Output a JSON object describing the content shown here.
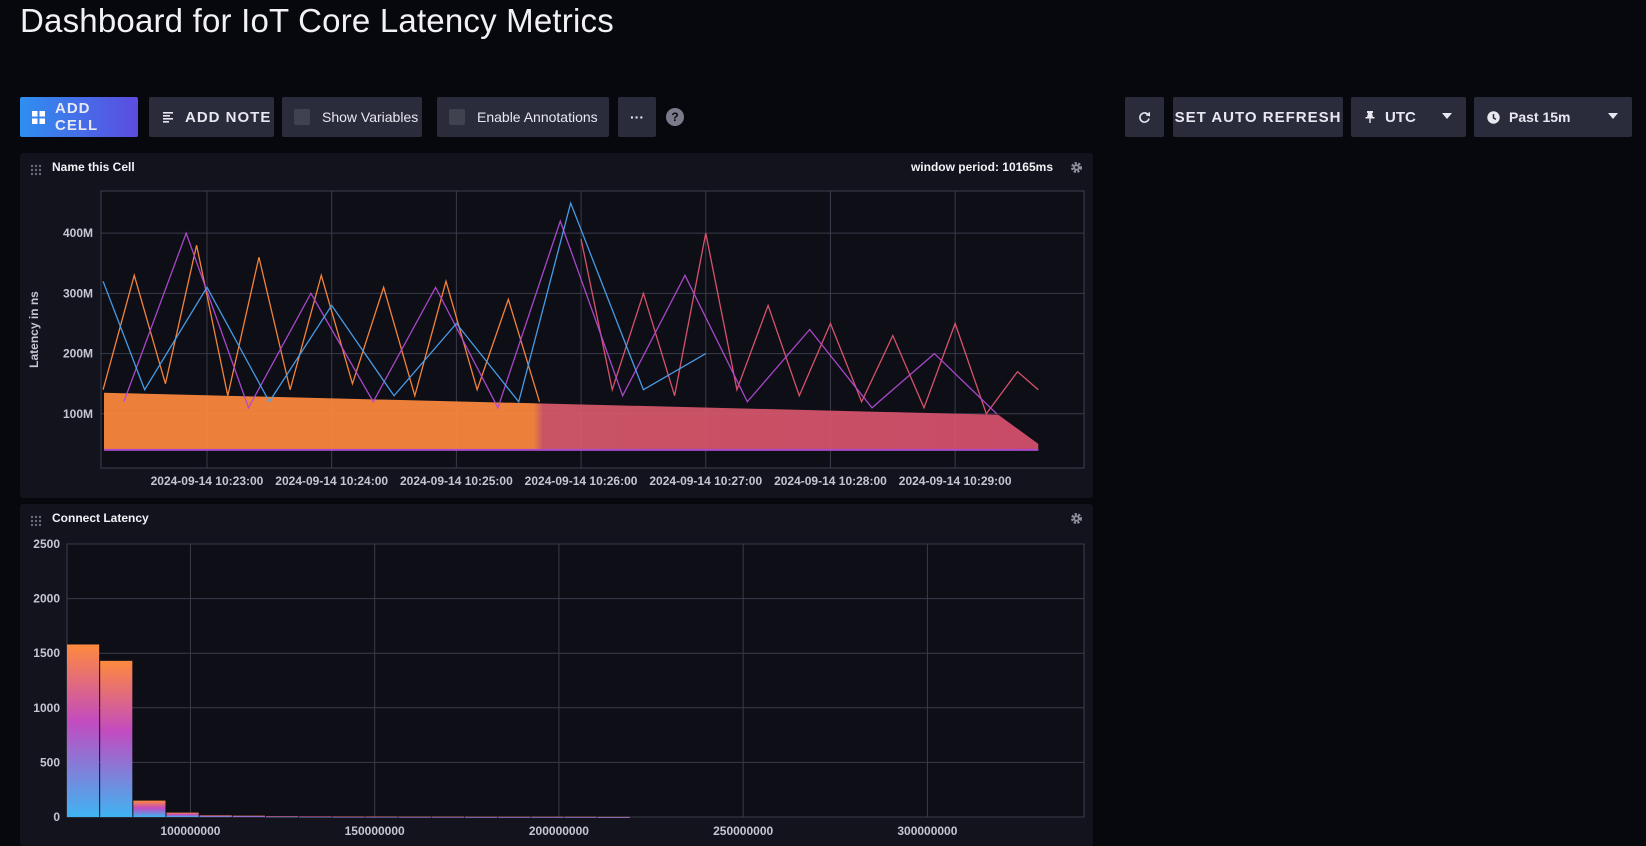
{
  "page": {
    "title": "Dashboard for IoT Core Latency Metrics"
  },
  "toolbar": {
    "add_cell": "ADD CELL",
    "add_note": "ADD NOTE",
    "show_variables": "Show Variables",
    "enable_annotations": "Enable Annotations",
    "more": "···",
    "help": "?",
    "set_auto_refresh": "SET AUTO REFRESH",
    "timezone": "UTC",
    "time_range": "Past 15m"
  },
  "colors": {
    "accent_blue": "#2e8ff0",
    "accent_purple": "#5c4ce0",
    "series_orange": "#ff8a3d",
    "series_pink": "#e0566f",
    "series_magenta": "#b14ad2",
    "series_blue": "#4aa3f0"
  },
  "cells": {
    "line_cell": {
      "title": "Name this Cell",
      "window_period": "window period: 10165ms"
    },
    "hist_cell": {
      "title": "Connect Latency"
    }
  },
  "chart_data": [
    {
      "type": "line",
      "title": "Name this Cell",
      "ylabel": "Latency in ns",
      "xlabel": "",
      "y_ticks": [
        "100M",
        "200M",
        "300M",
        "400M"
      ],
      "y_tick_values": [
        100000000,
        200000000,
        300000000,
        400000000
      ],
      "ylim": [
        10000000,
        470000000
      ],
      "x_ticks": [
        "2024-09-14 10:23:00",
        "2024-09-14 10:24:00",
        "2024-09-14 10:25:00",
        "2024-09-14 10:26:00",
        "2024-09-14 10:27:00",
        "2024-09-14 10:28:00",
        "2024-09-14 10:29:00"
      ],
      "xlim": [
        "2024-09-14 10:22:09",
        "2024-09-14 10:30:02"
      ],
      "grid": true,
      "series": [
        {
          "color": "#ff8a3d",
          "x": [
            "2024-09-14 10:22:10",
            "2024-09-14 10:22:25",
            "2024-09-14 10:22:40",
            "2024-09-14 10:22:55",
            "2024-09-14 10:23:10",
            "2024-09-14 10:23:25",
            "2024-09-14 10:23:40",
            "2024-09-14 10:23:55",
            "2024-09-14 10:24:10",
            "2024-09-14 10:24:25",
            "2024-09-14 10:24:40",
            "2024-09-14 10:24:55",
            "2024-09-14 10:25:10",
            "2024-09-14 10:25:25",
            "2024-09-14 10:25:40"
          ],
          "values": [
            140000000,
            330000000,
            150000000,
            380000000,
            130000000,
            360000000,
            140000000,
            330000000,
            150000000,
            310000000,
            130000000,
            320000000,
            140000000,
            290000000,
            120000000
          ]
        },
        {
          "color": "#e0566f",
          "x": [
            "2024-09-14 10:26:00",
            "2024-09-14 10:26:15",
            "2024-09-14 10:26:30",
            "2024-09-14 10:26:45",
            "2024-09-14 10:27:00",
            "2024-09-14 10:27:15",
            "2024-09-14 10:27:30",
            "2024-09-14 10:27:45",
            "2024-09-14 10:28:00",
            "2024-09-14 10:28:15",
            "2024-09-14 10:28:30",
            "2024-09-14 10:28:45",
            "2024-09-14 10:29:00",
            "2024-09-14 10:29:15",
            "2024-09-14 10:29:30",
            "2024-09-14 10:29:40"
          ],
          "values": [
            390000000,
            140000000,
            300000000,
            130000000,
            400000000,
            140000000,
            280000000,
            130000000,
            250000000,
            120000000,
            230000000,
            110000000,
            250000000,
            100000000,
            170000000,
            140000000
          ]
        },
        {
          "color": "#b14ad2",
          "x": [
            "2024-09-14 10:22:20",
            "2024-09-14 10:22:50",
            "2024-09-14 10:23:20",
            "2024-09-14 10:23:50",
            "2024-09-14 10:24:20",
            "2024-09-14 10:24:50",
            "2024-09-14 10:25:20",
            "2024-09-14 10:25:50",
            "2024-09-14 10:26:20",
            "2024-09-14 10:26:50",
            "2024-09-14 10:27:20",
            "2024-09-14 10:27:50",
            "2024-09-14 10:28:20",
            "2024-09-14 10:28:50",
            "2024-09-14 10:29:20"
          ],
          "values": [
            120000000,
            400000000,
            110000000,
            300000000,
            120000000,
            310000000,
            110000000,
            420000000,
            130000000,
            330000000,
            120000000,
            240000000,
            110000000,
            200000000,
            100000000
          ]
        },
        {
          "color": "#4aa3f0",
          "x": [
            "2024-09-14 10:22:10",
            "2024-09-14 10:22:30",
            "2024-09-14 10:23:00",
            "2024-09-14 10:23:30",
            "2024-09-14 10:24:00",
            "2024-09-14 10:24:30",
            "2024-09-14 10:25:00",
            "2024-09-14 10:25:30",
            "2024-09-14 10:25:55",
            "2024-09-14 10:26:30",
            "2024-09-14 10:27:00"
          ],
          "values": [
            320000000,
            140000000,
            310000000,
            120000000,
            280000000,
            130000000,
            250000000,
            120000000,
            450000000,
            140000000,
            200000000
          ]
        }
      ]
    },
    {
      "type": "bar",
      "title": "Connect Latency",
      "xlabel": "",
      "ylabel": "",
      "y_ticks": [
        "0",
        "500",
        "1000",
        "1500",
        "2000",
        "2500"
      ],
      "y_tick_values": [
        0,
        500,
        1000,
        1500,
        2000,
        2500
      ],
      "ylim": [
        0,
        2500
      ],
      "x_ticks": [
        "100000000",
        "150000000",
        "200000000",
        "250000000",
        "300000000"
      ],
      "x_tick_values": [
        100000000,
        150000000,
        200000000,
        250000000,
        300000000
      ],
      "xlim": [
        66500000,
        342500000
      ],
      "grid": true,
      "bin_width": 9000000,
      "bin_starts": [
        66500000,
        75500000,
        84500000,
        93500000,
        102500000,
        111500000,
        120500000,
        129500000,
        138500000,
        147500000,
        156500000,
        165500000,
        174500000,
        183500000,
        192500000,
        201500000,
        210500000
      ],
      "values": [
        1580,
        1430,
        150,
        40,
        15,
        12,
        7,
        5,
        4,
        4,
        3,
        3,
        2,
        2,
        2,
        2,
        1
      ]
    }
  ]
}
